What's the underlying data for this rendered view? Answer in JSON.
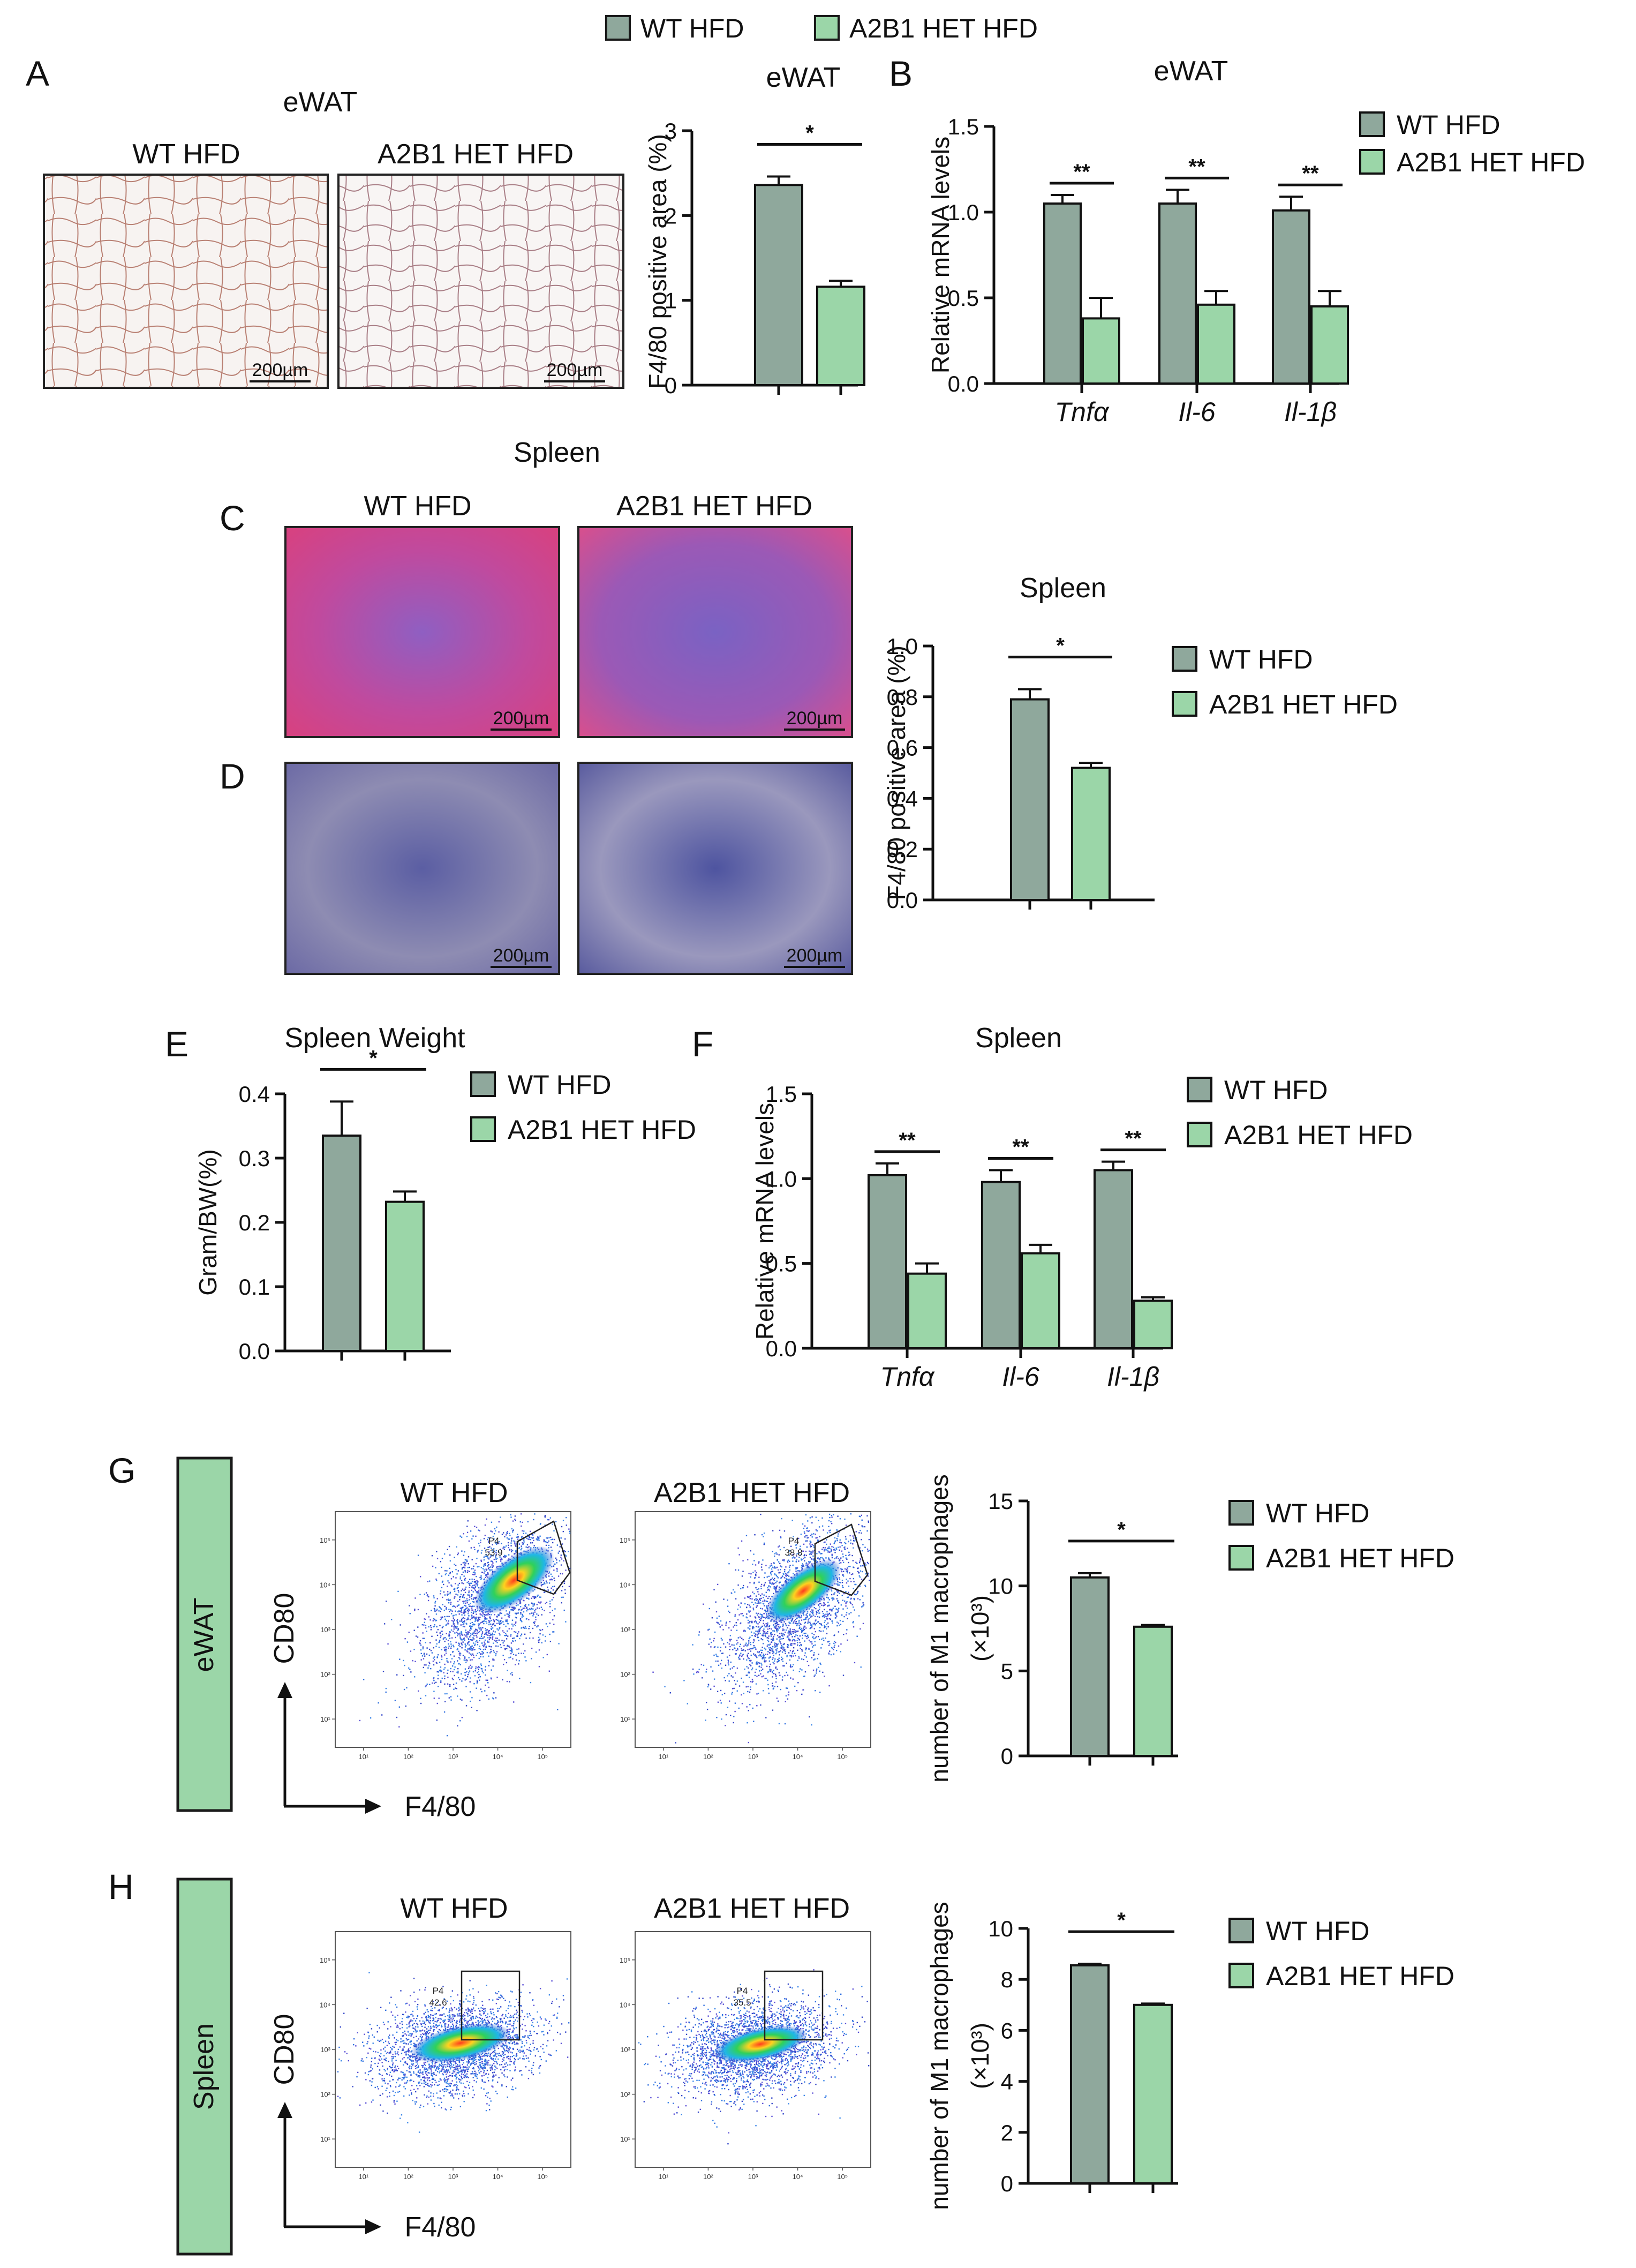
{
  "colors": {
    "wt": "#8fa89c",
    "het": "#9bd6a8",
    "outline": "#1a1a1a"
  },
  "top_legend": {
    "wt": "WT HFD",
    "het": "A2B1 HET HFD"
  },
  "panel_letters": [
    "A",
    "B",
    "C",
    "D",
    "E",
    "F",
    "G",
    "H"
  ],
  "histology": {
    "ewat_title": "eWAT",
    "spleen_title": "Spleen",
    "wt_label": "WT HFD",
    "het_label": "A2B1 HET HFD",
    "scale_bar": "200µm"
  },
  "flow": {
    "wt_label": "WT HFD",
    "het_label": "A2B1 HET HFD",
    "x_axis": "F4/80",
    "y_axis": "CD80",
    "side_ewat": "eWAT",
    "side_spleen": "Spleen",
    "gate_name": "P4",
    "ewat_wt_gate": "53.9",
    "ewat_het_gate": "38.8",
    "spleen_wt_gate": "42.6",
    "spleen_het_gate": "35.5",
    "tick_labels": [
      "10¹",
      "10²",
      "10³",
      "10⁴",
      "10⁵"
    ]
  },
  "chart_data": [
    {
      "id": "A-bar",
      "type": "bar",
      "title": "eWAT",
      "ylabel": "F4/80 positive area (%)",
      "ylim": [
        0,
        3
      ],
      "yticks": [
        "0",
        "1",
        "2",
        "3"
      ],
      "series": [
        {
          "name": "WT HFD",
          "values": [
            2.36
          ],
          "errors": [
            0.1
          ]
        },
        {
          "name": "A2B1 HET HFD",
          "values": [
            1.16
          ],
          "errors": [
            0.07
          ]
        }
      ],
      "significance": [
        "*"
      ]
    },
    {
      "id": "B",
      "type": "bar",
      "title": "eWAT",
      "ylabel": "Relative mRNA levels",
      "ylim": [
        0,
        1.5
      ],
      "yticks": [
        "0.0",
        "0.5",
        "1.0",
        "1.5"
      ],
      "categories": [
        "Tnfα",
        "Il-6",
        "Il-1β"
      ],
      "series": [
        {
          "name": "WT HFD",
          "values": [
            1.05,
            1.05,
            1.01
          ],
          "errors": [
            0.05,
            0.08,
            0.08
          ]
        },
        {
          "name": "A2B1 HET HFD",
          "values": [
            0.38,
            0.46,
            0.45
          ],
          "errors": [
            0.12,
            0.08,
            0.09
          ]
        }
      ],
      "significance": [
        "**",
        "**",
        "**"
      ],
      "legend": [
        "WT HFD",
        "A2B1 HET HFD"
      ]
    },
    {
      "id": "C-bar",
      "type": "bar",
      "title": "Spleen",
      "ylabel": "F4/80 positive area (%)",
      "ylim": [
        0,
        1.0
      ],
      "yticks": [
        "0.0",
        "0.2",
        "0.4",
        "0.6",
        "0.8",
        "1.0"
      ],
      "series": [
        {
          "name": "WT HFD",
          "values": [
            0.79
          ],
          "errors": [
            0.04
          ]
        },
        {
          "name": "A2B1 HET HFD",
          "values": [
            0.52
          ],
          "errors": [
            0.02
          ]
        }
      ],
      "significance": [
        "*"
      ],
      "legend": [
        "WT HFD",
        "A2B1 HET HFD"
      ]
    },
    {
      "id": "E",
      "type": "bar",
      "title": "Spleen Weight",
      "ylabel": "Gram/BW(%)",
      "ylim": [
        0,
        0.4
      ],
      "yticks": [
        "0.0",
        "0.1",
        "0.2",
        "0.3",
        "0.4"
      ],
      "series": [
        {
          "name": "WT HFD",
          "values": [
            0.335
          ],
          "errors": [
            0.053
          ]
        },
        {
          "name": "A2B1 HET HFD",
          "values": [
            0.232
          ],
          "errors": [
            0.016
          ]
        }
      ],
      "significance": [
        "*"
      ],
      "legend": [
        "WT HFD",
        "A2B1 HET HFD"
      ]
    },
    {
      "id": "F",
      "type": "bar",
      "title": "Spleen",
      "ylabel": "Relative mRNA levels",
      "ylim": [
        0,
        1.5
      ],
      "yticks": [
        "0.0",
        "0.5",
        "1.0",
        "1.5"
      ],
      "categories": [
        "Tnfα",
        "Il-6",
        "Il-1β"
      ],
      "series": [
        {
          "name": "WT HFD",
          "values": [
            1.02,
            0.98,
            1.05
          ],
          "errors": [
            0.07,
            0.07,
            0.05
          ]
        },
        {
          "name": "A2B1 HET HFD",
          "values": [
            0.44,
            0.56,
            0.28
          ],
          "errors": [
            0.06,
            0.05,
            0.02
          ]
        }
      ],
      "significance": [
        "**",
        "**",
        "**"
      ],
      "legend": [
        "WT HFD",
        "A2B1 HET HFD"
      ]
    },
    {
      "id": "G-bar",
      "type": "bar",
      "title": "",
      "ylabel": "number of M1 macrophages",
      "ylabel2": "(×10³)",
      "ylim": [
        0,
        15
      ],
      "yticks": [
        "0",
        "5",
        "10",
        "15"
      ],
      "series": [
        {
          "name": "WT HFD",
          "values": [
            10.5
          ],
          "errors": [
            0.25
          ]
        },
        {
          "name": "A2B1 HET HFD",
          "values": [
            7.6
          ],
          "errors": [
            0.1
          ]
        }
      ],
      "significance": [
        "*"
      ],
      "legend": [
        "WT HFD",
        "A2B1 HET HFD"
      ]
    },
    {
      "id": "H-bar",
      "type": "bar",
      "title": "",
      "ylabel": "number of M1 macrophages",
      "ylabel2": "(×10³)",
      "ylim": [
        0,
        10
      ],
      "yticks": [
        "0",
        "2",
        "4",
        "6",
        "8",
        "10"
      ],
      "series": [
        {
          "name": "WT HFD",
          "values": [
            8.55
          ],
          "errors": [
            0.06
          ]
        },
        {
          "name": "A2B1 HET HFD",
          "values": [
            7.0
          ],
          "errors": [
            0.05
          ]
        }
      ],
      "significance": [
        "*"
      ],
      "legend": [
        "WT HFD",
        "A2B1 HET HFD"
      ]
    }
  ]
}
